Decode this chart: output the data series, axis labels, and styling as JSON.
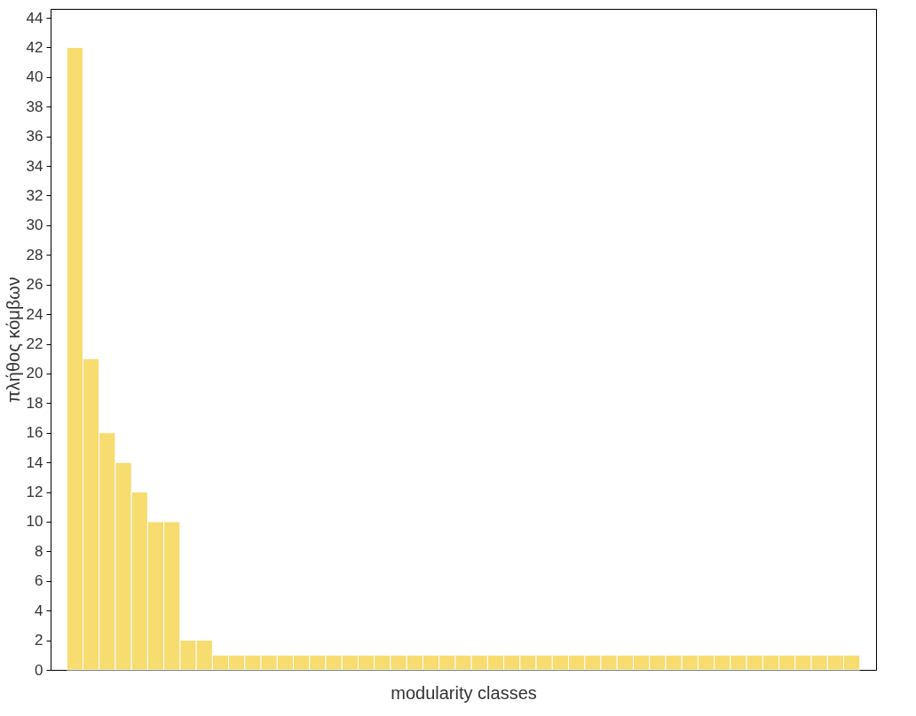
{
  "chart_data": {
    "type": "bar",
    "xlabel": "modularity classes",
    "ylabel": "πλήθος κόμβων",
    "categories": [
      null,
      null,
      null,
      null,
      null,
      null,
      null,
      null,
      null,
      null,
      null,
      null,
      null,
      null,
      null,
      null,
      null,
      null,
      null,
      null,
      null,
      null,
      null,
      null,
      null,
      null,
      null,
      null,
      null,
      null,
      null,
      null,
      null,
      null,
      null,
      null,
      null,
      null,
      null,
      null,
      null,
      null,
      null,
      null,
      null,
      null,
      null,
      null,
      null
    ],
    "values": [
      42,
      21,
      16,
      14,
      12,
      10,
      10,
      2,
      2,
      1,
      1,
      1,
      1,
      1,
      1,
      1,
      1,
      1,
      1,
      1,
      1,
      1,
      1,
      1,
      1,
      1,
      1,
      1,
      1,
      1,
      1,
      1,
      1,
      1,
      1,
      1,
      1,
      1,
      1,
      1,
      1,
      1,
      1,
      1,
      1,
      1,
      1,
      1,
      1
    ],
    "color": "#f7dc6f",
    "ylim": [
      0,
      44.6
    ],
    "yticks": [
      0,
      2,
      4,
      6,
      8,
      10,
      12,
      14,
      16,
      18,
      20,
      22,
      24,
      26,
      28,
      30,
      32,
      34,
      36,
      38,
      40,
      42,
      44
    ],
    "grid": false
  }
}
